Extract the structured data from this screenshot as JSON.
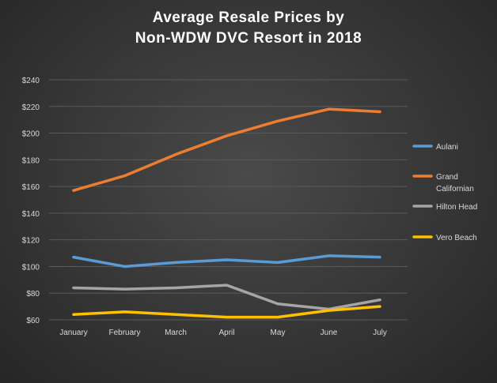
{
  "title_line1": "Average Resale Prices by",
  "title_line2": "Non-WDW  DVC Resort  in 2018",
  "chart_data": {
    "type": "line",
    "title": "Average Resale Prices by Non-WDW DVC Resort in 2018",
    "categories": [
      "January",
      "February",
      "March",
      "April",
      "May",
      "June",
      "July"
    ],
    "ylim": [
      60,
      240
    ],
    "yticks": [
      60,
      80,
      100,
      120,
      140,
      160,
      180,
      200,
      220,
      240
    ],
    "ytick_labels": [
      "$60",
      "$80",
      "$100",
      "$120",
      "$140",
      "$160",
      "$180",
      "$200",
      "$220",
      "$240"
    ],
    "grid": true,
    "legend_position": "right",
    "series": [
      {
        "name": "Aulani",
        "color": "#5b9bd5",
        "values": [
          107,
          100,
          103,
          105,
          103,
          108,
          107
        ]
      },
      {
        "name": "Grand Californian",
        "label_lines": [
          "Grand",
          "Californian"
        ],
        "color": "#ed7d31",
        "values": [
          157,
          168,
          184,
          198,
          209,
          218,
          216
        ]
      },
      {
        "name": "Hilton Head",
        "color": "#a5a5a5",
        "values": [
          84,
          83,
          84,
          86,
          72,
          68,
          75
        ]
      },
      {
        "name": "Vero Beach",
        "color": "#ffc000",
        "values": [
          64,
          66,
          64,
          62,
          62,
          67,
          70
        ]
      }
    ]
  }
}
